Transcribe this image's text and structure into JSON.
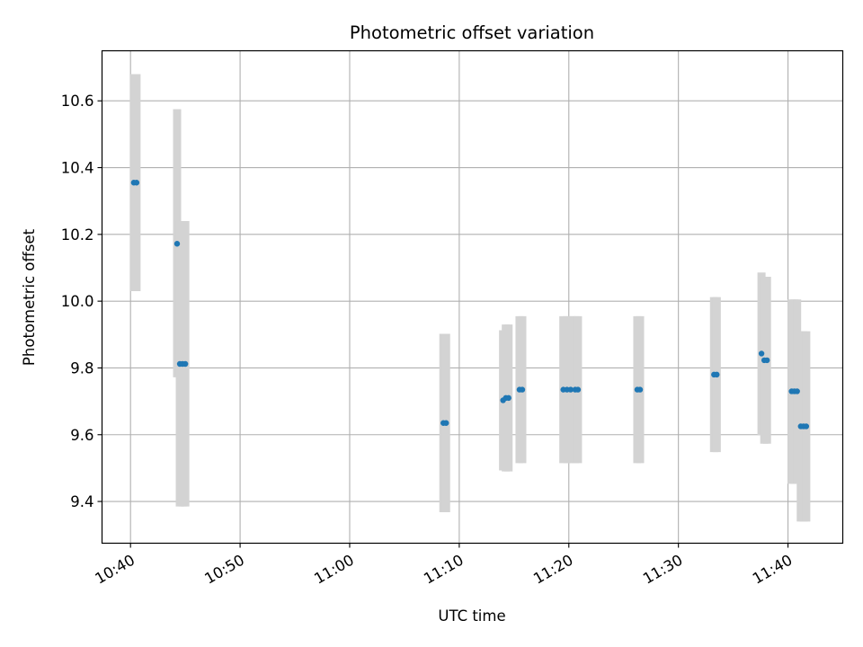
{
  "chart_data": {
    "type": "scatter",
    "title": "Photometric offset variation",
    "xlabel": "UTC time",
    "ylabel": "Photometric offset",
    "x_tick_labels": [
      "10:40",
      "10:50",
      "11:00",
      "11:10",
      "11:20",
      "11:30",
      "11:40"
    ],
    "y_tick_labels": [
      "9.4",
      "9.6",
      "9.8",
      "10.0",
      "10.2",
      "10.4",
      "10.6"
    ],
    "x_ticks": [
      "10:40",
      "10:50",
      "11:00",
      "11:10",
      "11:20",
      "11:30",
      "11:40"
    ],
    "y_ticks": [
      9.4,
      9.6,
      9.8,
      10.0,
      10.2,
      10.4,
      10.6
    ],
    "xlim": [
      "10:37:24",
      "11:45:00"
    ],
    "ylim": [
      9.275,
      10.75
    ],
    "grid": true,
    "point_color": "#1f77b4",
    "errorbar_color": "#d3d3d3",
    "points": [
      {
        "t": "10:40:18",
        "y": 10.355,
        "lo": 10.03,
        "hi": 10.68
      },
      {
        "t": "10:40:33",
        "y": 10.355,
        "lo": 10.03,
        "hi": 10.68
      },
      {
        "t": "10:44:15",
        "y": 10.172,
        "lo": 9.772,
        "hi": 10.575
      },
      {
        "t": "10:44:30",
        "y": 9.812,
        "lo": 9.385,
        "hi": 10.24
      },
      {
        "t": "10:44:45",
        "y": 9.812,
        "lo": 9.385,
        "hi": 10.24
      },
      {
        "t": "10:45:00",
        "y": 9.812,
        "lo": 9.385,
        "hi": 10.24
      },
      {
        "t": "11:08:33",
        "y": 9.635,
        "lo": 9.368,
        "hi": 9.902
      },
      {
        "t": "11:08:48",
        "y": 9.635,
        "lo": 9.368,
        "hi": 9.902
      },
      {
        "t": "11:14:00",
        "y": 9.703,
        "lo": 9.493,
        "hi": 9.913
      },
      {
        "t": "11:14:15",
        "y": 9.71,
        "lo": 9.49,
        "hi": 9.93
      },
      {
        "t": "11:14:30",
        "y": 9.71,
        "lo": 9.49,
        "hi": 9.93
      },
      {
        "t": "11:15:30",
        "y": 9.735,
        "lo": 9.515,
        "hi": 9.955
      },
      {
        "t": "11:15:45",
        "y": 9.735,
        "lo": 9.515,
        "hi": 9.955
      },
      {
        "t": "11:19:30",
        "y": 9.735,
        "lo": 9.515,
        "hi": 9.955
      },
      {
        "t": "11:19:50",
        "y": 9.735,
        "lo": 9.515,
        "hi": 9.955
      },
      {
        "t": "11:20:10",
        "y": 9.735,
        "lo": 9.515,
        "hi": 9.955
      },
      {
        "t": "11:20:35",
        "y": 9.735,
        "lo": 9.515,
        "hi": 9.955
      },
      {
        "t": "11:20:50",
        "y": 9.735,
        "lo": 9.515,
        "hi": 9.955
      },
      {
        "t": "11:26:15",
        "y": 9.735,
        "lo": 9.515,
        "hi": 9.955
      },
      {
        "t": "11:26:30",
        "y": 9.735,
        "lo": 9.515,
        "hi": 9.955
      },
      {
        "t": "11:33:15",
        "y": 9.78,
        "lo": 9.548,
        "hi": 10.012
      },
      {
        "t": "11:33:30",
        "y": 9.78,
        "lo": 9.548,
        "hi": 10.012
      },
      {
        "t": "11:37:35",
        "y": 9.843,
        "lo": 9.598,
        "hi": 10.086
      },
      {
        "t": "11:37:50",
        "y": 9.823,
        "lo": 9.573,
        "hi": 10.073
      },
      {
        "t": "11:38:05",
        "y": 9.823,
        "lo": 9.573,
        "hi": 10.073
      },
      {
        "t": "11:40:20",
        "y": 9.73,
        "lo": 9.453,
        "hi": 10.005
      },
      {
        "t": "11:40:35",
        "y": 9.73,
        "lo": 9.453,
        "hi": 10.005
      },
      {
        "t": "11:40:50",
        "y": 9.73,
        "lo": 9.453,
        "hi": 10.005
      },
      {
        "t": "11:41:10",
        "y": 9.625,
        "lo": 9.34,
        "hi": 9.91
      },
      {
        "t": "11:41:25",
        "y": 9.625,
        "lo": 9.34,
        "hi": 9.91
      },
      {
        "t": "11:41:40",
        "y": 9.625,
        "lo": 9.34,
        "hi": 9.91
      }
    ]
  }
}
